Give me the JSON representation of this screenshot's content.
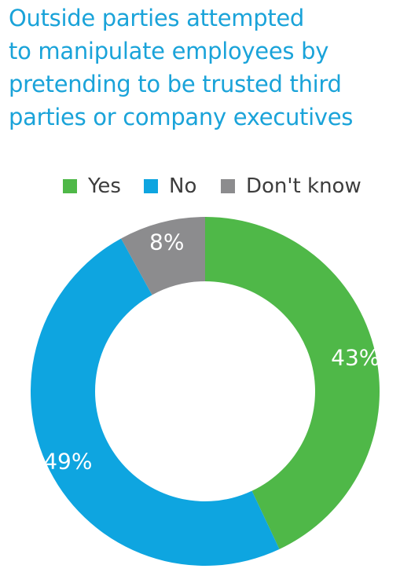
{
  "title_lines": [
    "Outside parties attempted",
    "to manipulate employees by",
    "pretending to be trusted third",
    "parties or company executives"
  ],
  "chart_data": {
    "type": "pie",
    "donut": true,
    "legend_position": "top",
    "categories": [
      "Yes",
      "No",
      "Don't know"
    ],
    "values": [
      43,
      49,
      8
    ],
    "labels": [
      "43%",
      "49%",
      "8%"
    ],
    "colors": [
      "#4fb848",
      "#0ea5e0",
      "#8c8c8e"
    ],
    "title": "Outside parties attempted to manipulate employees by pretending to be trusted third parties or company executives"
  },
  "legend": [
    {
      "label": "Yes",
      "color": "#4fb848"
    },
    {
      "label": "No",
      "color": "#0ea5e0"
    },
    {
      "label": "Don't know",
      "color": "#8c8c8e"
    }
  ]
}
